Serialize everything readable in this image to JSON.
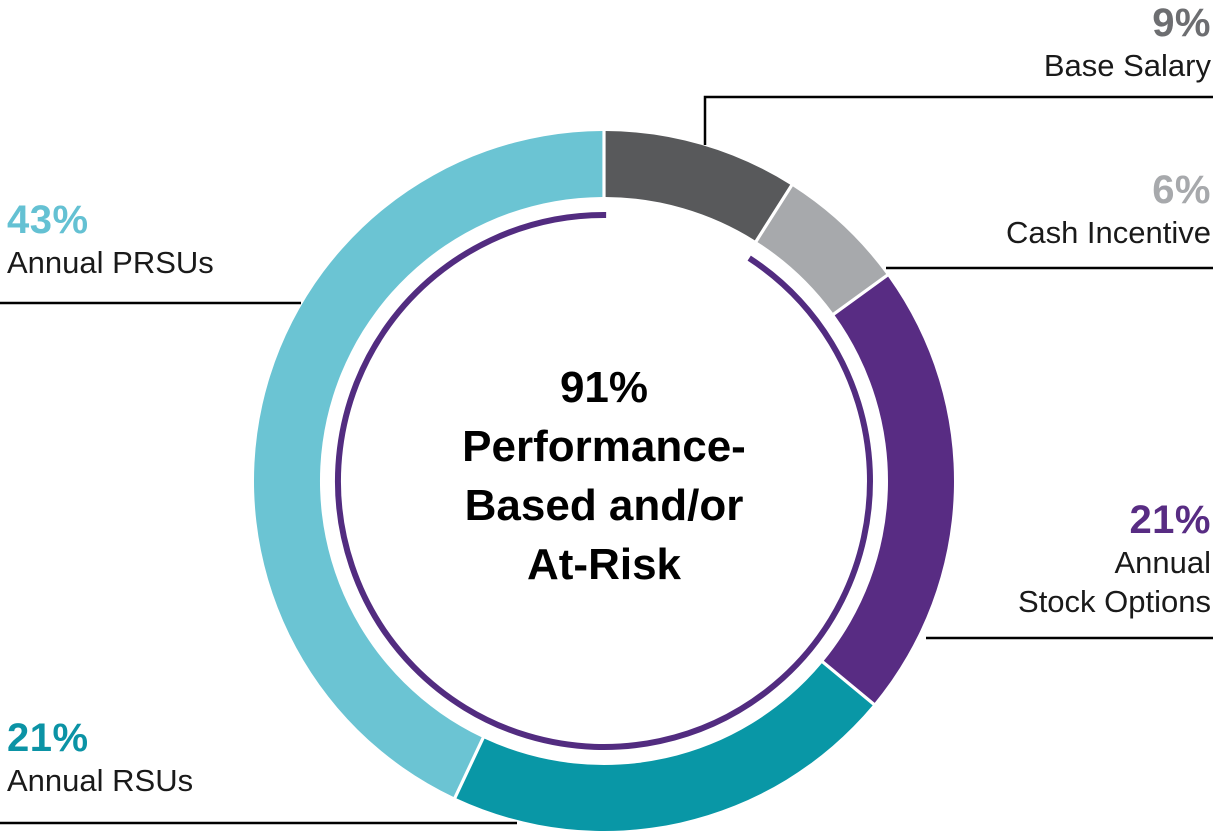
{
  "chart_data": {
    "type": "pie",
    "subtype": "donut",
    "order_clockwise_from_top": true,
    "center_label_lines": [
      "91%",
      "Performance-",
      "Based and/or",
      "At-Risk"
    ],
    "segments": [
      {
        "label": "Base Salary",
        "value_pct": 9,
        "color": "#58595B"
      },
      {
        "label": "Cash Incentive",
        "value_pct": 6,
        "color": "#A7A9AC"
      },
      {
        "label": "Annual Stock Options",
        "value_pct": 21,
        "color": "#582C83"
      },
      {
        "label": "Annual RSUs",
        "value_pct": 21,
        "color": "#0997A6"
      },
      {
        "label": "Annual PRSUs",
        "value_pct": 43,
        "color": "#6BC4D3"
      }
    ],
    "inner_arc": {
      "color": "#522C80",
      "spans_pct": 91
    },
    "legend_position": "callouts-around-chart"
  },
  "callouts": {
    "base_salary": {
      "pct": "9%",
      "pct_color": "#6D6E71",
      "lines": [
        "Base Salary"
      ]
    },
    "cash_incentive": {
      "pct": "6%",
      "pct_color": "#A7A9AC",
      "lines": [
        "Cash Incentive"
      ]
    },
    "stock_options": {
      "pct": "21%",
      "pct_color": "#582C83",
      "lines": [
        "Annual",
        "Stock Options"
      ]
    },
    "annual_prsus": {
      "pct": "43%",
      "pct_color": "#64C1D3",
      "lines": [
        "Annual PRSUs"
      ]
    },
    "annual_rsus": {
      "pct": "21%",
      "pct_color": "#0B93A5",
      "lines": [
        "Annual RSUs"
      ]
    }
  }
}
